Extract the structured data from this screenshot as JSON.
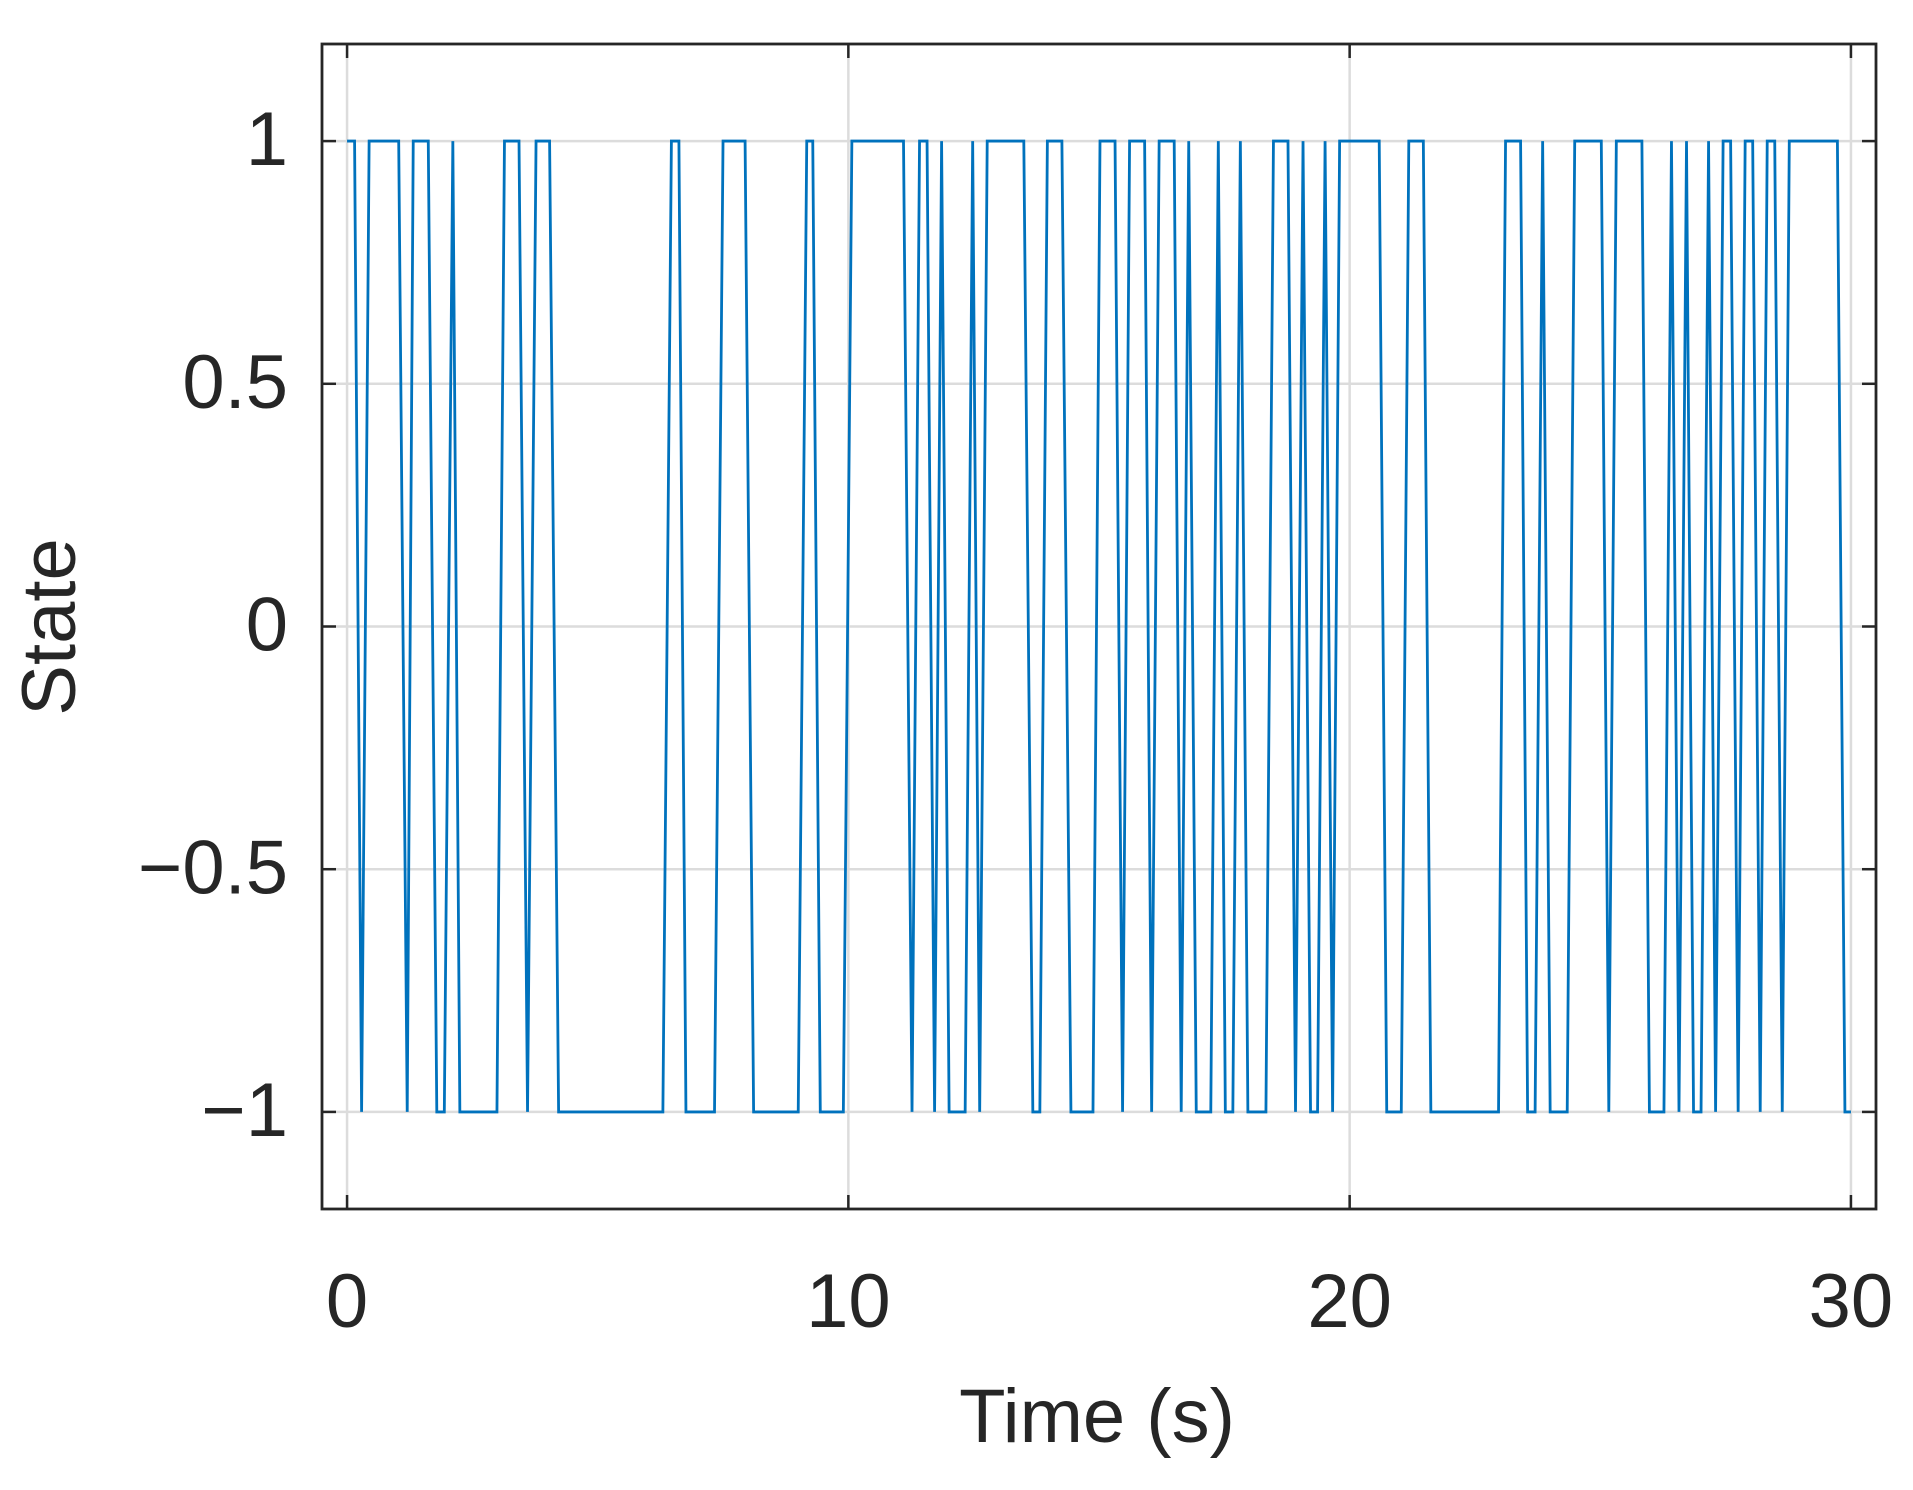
{
  "chart_data": {
    "type": "line",
    "xlabel": "Time (s)",
    "ylabel": "State",
    "x": [
      0,
      0.15,
      0.29,
      0.44,
      1.03,
      1.2,
      1.32,
      1.62,
      1.79,
      1.94,
      2.11,
      2.25,
      2.99,
      3.14,
      3.43,
      3.6,
      3.77,
      4.04,
      4.22,
      6.3,
      6.47,
      6.62,
      6.76,
      7.33,
      7.5,
      7.94,
      8.11,
      9.0,
      9.17,
      9.29,
      9.44,
      9.9,
      10.07,
      11.1,
      11.27,
      11.42,
      11.57,
      11.72,
      11.86,
      12.01,
      12.33,
      12.48,
      12.62,
      12.77,
      13.5,
      13.68,
      13.82,
      13.97,
      14.26,
      14.44,
      14.88,
      15.02,
      15.32,
      15.47,
      15.61,
      15.91,
      16.05,
      16.2,
      16.5,
      16.64,
      16.79,
      16.94,
      17.23,
      17.38,
      17.52,
      17.67,
      17.82,
      17.97,
      18.33,
      18.48,
      18.77,
      18.92,
      19.07,
      19.22,
      19.36,
      19.51,
      19.66,
      19.8,
      20.59,
      20.74,
      21.03,
      21.18,
      21.47,
      21.62,
      22.97,
      23.11,
      23.41,
      23.55,
      23.7,
      23.85,
      24.0,
      24.34,
      24.49,
      25.02,
      25.17,
      25.32,
      25.83,
      25.98,
      26.27,
      26.42,
      26.57,
      26.72,
      26.86,
      27.01,
      27.16,
      27.3,
      27.45,
      27.6,
      27.75,
      27.89,
      28.04,
      28.19,
      28.33,
      28.48,
      28.63,
      28.77,
      29.73,
      29.88,
      30
    ],
    "values": [
      1,
      1,
      -1,
      1,
      1,
      -1,
      1,
      1,
      -1,
      -1,
      1,
      -1,
      -1,
      1,
      1,
      -1,
      1,
      1,
      -1,
      -1,
      1,
      1,
      -1,
      -1,
      1,
      1,
      -1,
      -1,
      1,
      1,
      -1,
      -1,
      1,
      1,
      -1,
      1,
      1,
      -1,
      1,
      -1,
      -1,
      1,
      -1,
      1,
      1,
      -1,
      -1,
      1,
      1,
      -1,
      -1,
      1,
      1,
      -1,
      1,
      1,
      -1,
      1,
      1,
      -1,
      1,
      -1,
      -1,
      1,
      -1,
      -1,
      1,
      -1,
      -1,
      1,
      1,
      -1,
      1,
      -1,
      -1,
      1,
      -1,
      1,
      1,
      -1,
      -1,
      1,
      1,
      -1,
      -1,
      1,
      1,
      -1,
      -1,
      1,
      -1,
      -1,
      1,
      1,
      -1,
      1,
      1,
      -1,
      -1,
      1,
      -1,
      1,
      -1,
      -1,
      1,
      -1,
      1,
      1,
      -1,
      1,
      1,
      -1,
      1,
      1,
      -1,
      1,
      1,
      -1,
      -1
    ],
    "color": "#0072BD",
    "xlim": [
      -0.5,
      30.5
    ],
    "ylim": [
      -1.2,
      1.2
    ],
    "xticks": [
      0,
      10,
      20,
      30
    ],
    "yticks": [
      {
        "value": -1,
        "label": "−1"
      },
      {
        "value": -0.5,
        "label": "−0.5"
      },
      0,
      0.5,
      1
    ],
    "grid": true
  }
}
